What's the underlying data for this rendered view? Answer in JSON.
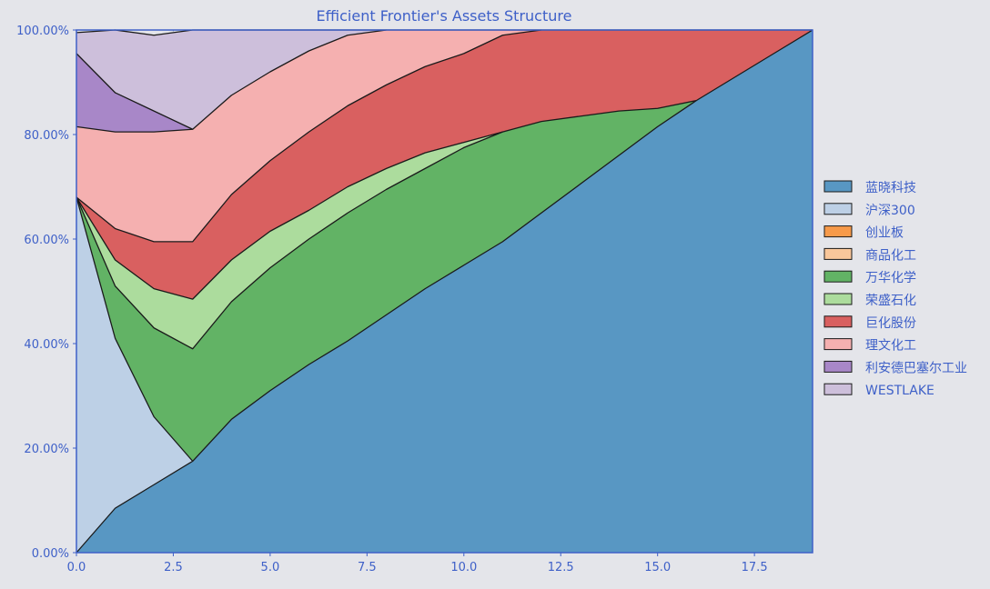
{
  "chart_data": {
    "type": "area",
    "stacked": true,
    "title": "Efficient Frontier's Assets Structure",
    "xlabel": "",
    "ylabel": "",
    "xlim": [
      0,
      19
    ],
    "ylim": [
      0,
      1
    ],
    "x_ticks": [
      0.0,
      2.5,
      5.0,
      7.5,
      10.0,
      12.5,
      15.0,
      17.5
    ],
    "x_tick_labels": [
      "0.0",
      "2.5",
      "5.0",
      "7.5",
      "10.0",
      "12.5",
      "15.0",
      "17.5"
    ],
    "y_ticks": [
      0,
      0.2,
      0.4,
      0.6,
      0.8,
      1.0
    ],
    "y_tick_labels": [
      "0.00%",
      "20.00%",
      "40.00%",
      "60.00%",
      "80.00%",
      "100.00%"
    ],
    "grid": true,
    "legend_position": "right",
    "x": [
      0,
      1,
      2,
      3,
      4,
      5,
      6,
      7,
      8,
      9,
      10,
      11,
      12,
      13,
      14,
      15,
      16,
      17,
      18,
      19
    ],
    "series": [
      {
        "name": "蓝晓科技",
        "color": "#5897c3",
        "values": [
          0,
          0.085,
          0.13,
          0.175,
          0.255,
          0.31,
          0.36,
          0.405,
          0.455,
          0.505,
          0.55,
          0.595,
          0.65,
          0.705,
          0.76,
          0.815,
          0.865,
          0.91,
          0.955,
          1.0
        ]
      },
      {
        "name": "沪深300",
        "color": "#bdd0e6",
        "values": [
          0.68,
          0.325,
          0.13,
          0,
          0,
          0,
          0,
          0,
          0,
          0,
          0,
          0,
          0,
          0,
          0,
          0,
          0,
          0,
          0,
          0
        ]
      },
      {
        "name": "创业板",
        "color": "#f79a4a",
        "values": [
          0,
          0,
          0,
          0,
          0,
          0,
          0,
          0,
          0,
          0,
          0,
          0,
          0,
          0,
          0,
          0,
          0,
          0,
          0,
          0
        ]
      },
      {
        "name": "商品化工",
        "color": "#f9c79b",
        "values": [
          0,
          0,
          0,
          0,
          0,
          0,
          0,
          0,
          0,
          0,
          0,
          0,
          0,
          0,
          0,
          0,
          0,
          0,
          0,
          0
        ]
      },
      {
        "name": "万华化学",
        "color": "#62b365",
        "values": [
          0,
          0.1,
          0.17,
          0.215,
          0.225,
          0.235,
          0.24,
          0.245,
          0.24,
          0.23,
          0.225,
          0.21,
          0.175,
          0.13,
          0.085,
          0.035,
          0,
          0,
          0,
          0
        ]
      },
      {
        "name": "荣盛石化",
        "color": "#acdc9d",
        "values": [
          0,
          0.05,
          0.075,
          0.095,
          0.08,
          0.07,
          0.055,
          0.05,
          0.04,
          0.03,
          0.01,
          0,
          0,
          0,
          0,
          0,
          0,
          0,
          0,
          0
        ]
      },
      {
        "name": "巨化股份",
        "color": "#d96060",
        "values": [
          0,
          0.06,
          0.09,
          0.11,
          0.125,
          0.135,
          0.15,
          0.155,
          0.16,
          0.165,
          0.17,
          0.185,
          0.175,
          0.165,
          0.155,
          0.15,
          0.135,
          0.09,
          0.045,
          0
        ]
      },
      {
        "name": "理文化工",
        "color": "#f5b0b0",
        "values": [
          0.135,
          0.185,
          0.21,
          0.215,
          0.19,
          0.17,
          0.155,
          0.135,
          0.105,
          0.07,
          0.045,
          0.01,
          0,
          0,
          0,
          0,
          0,
          0,
          0,
          0
        ]
      },
      {
        "name": "利安德巴塞尔工业",
        "color": "#a887c8",
        "values": [
          0.14,
          0.075,
          0.04,
          0,
          0,
          0,
          0,
          0,
          0,
          0,
          0,
          0,
          0,
          0,
          0,
          0,
          0,
          0,
          0,
          0
        ]
      },
      {
        "name": "WESTLAKE",
        "color": "#cdbfdb",
        "values": [
          0.04,
          0.12,
          0.145,
          0.19,
          0.125,
          0.08,
          0.04,
          0.01,
          0,
          0,
          0,
          0,
          0,
          0,
          0,
          0,
          0,
          0,
          0,
          0
        ]
      }
    ]
  }
}
